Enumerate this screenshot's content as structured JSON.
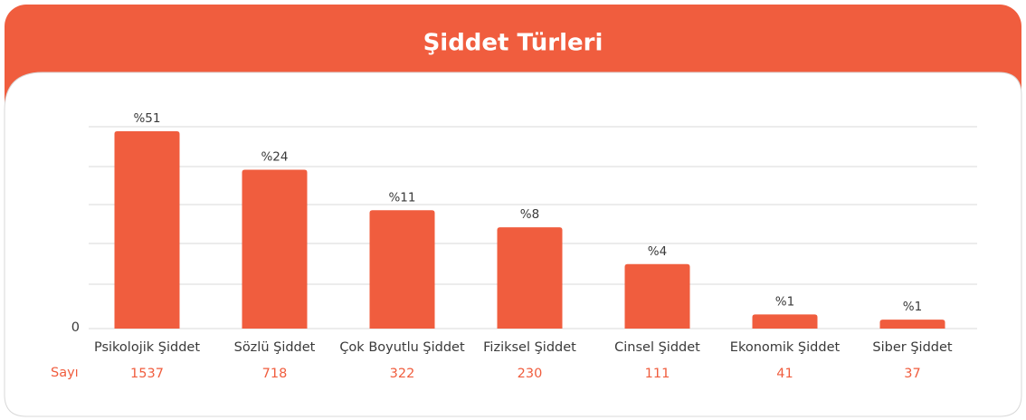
{
  "header": {
    "title": "Şiddet Türleri"
  },
  "chart_data": {
    "type": "bar",
    "categories": [
      "Psikolojik Şiddet",
      "Sözlü Şiddet",
      "Çok Boyutlu Şiddet",
      "Fiziksel Şiddet",
      "Cinsel Şiddet",
      "Ekonomik Şiddet",
      "Siber Şiddet"
    ],
    "values": [
      1537,
      718,
      322,
      230,
      111,
      41,
      37
    ],
    "values_row_label": "Sayı",
    "share": [
      51,
      24,
      11,
      8,
      4,
      1,
      1
    ],
    "share_labels": [
      "%51",
      "%24",
      "%11",
      "%8",
      "%4",
      "%1",
      "%1"
    ],
    "y_axis_label": "0",
    "color": "#f05d3e",
    "log_scale": true,
    "ylim": [
      31,
      1680
    ]
  }
}
